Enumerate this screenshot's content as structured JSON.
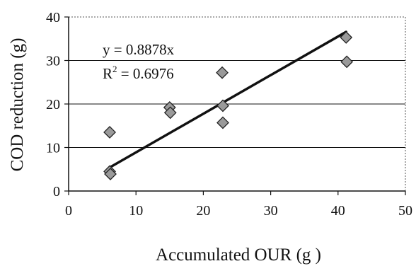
{
  "chart_data": {
    "type": "scatter",
    "xlabel": "Accumulated OUR (g )",
    "ylabel": "COD reduction (g)",
    "xlim": [
      0,
      50
    ],
    "ylim": [
      0,
      40
    ],
    "xticks": [
      "0",
      "10",
      "20",
      "30",
      "40",
      "50"
    ],
    "yticks": [
      "0",
      "10",
      "20",
      "30",
      "40"
    ],
    "grid": "horizontal",
    "points": [
      {
        "x": 6.1,
        "y": 13.5
      },
      {
        "x": 6.1,
        "y": 4.5
      },
      {
        "x": 6.2,
        "y": 3.9
      },
      {
        "x": 15.0,
        "y": 19.2
      },
      {
        "x": 15.1,
        "y": 18.0
      },
      {
        "x": 22.8,
        "y": 27.2
      },
      {
        "x": 22.9,
        "y": 19.6
      },
      {
        "x": 22.9,
        "y": 15.7
      },
      {
        "x": 41.2,
        "y": 35.3
      },
      {
        "x": 41.3,
        "y": 29.7
      }
    ],
    "trendline": {
      "type": "linear-through-origin",
      "slope": 0.8878,
      "x_range": [
        6,
        41.2
      ]
    },
    "annotations": {
      "equation": "y = 0.8878x",
      "r2_prefix": "R",
      "r2_sup": "2",
      "r2_value": " = 0.6976"
    },
    "colors": {
      "marker_fill": "#9a9a9a",
      "marker_stroke": "#222222",
      "line": "#111111",
      "grid": "#111111"
    }
  }
}
